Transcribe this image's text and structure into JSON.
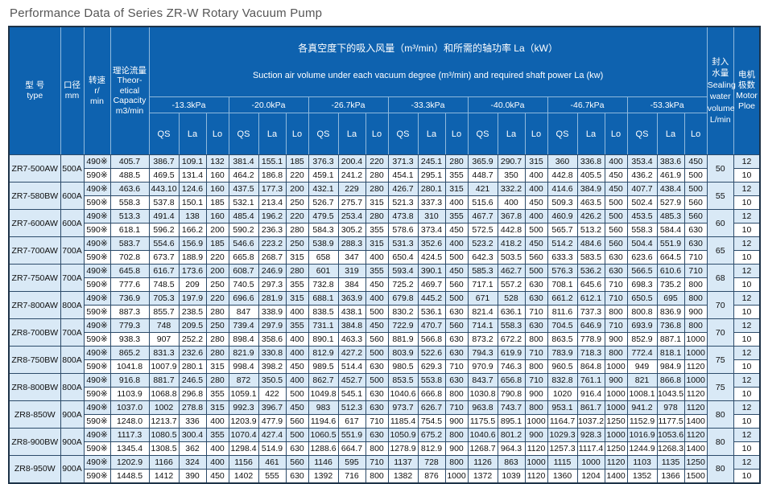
{
  "title": "Performance Data of Series ZR-W Rotary Vacuum Pump",
  "table": {
    "banner": {
      "line1": "各真空度下的吸入风量（m³/min）和所需的轴功率 La（kW）",
      "line2": "Suction air volume under each vacuum degree (m³/min) and required shaft power La (kw)"
    },
    "columns": {
      "type": [
        "型 号",
        "type"
      ],
      "caliber": [
        "口径",
        "mm"
      ],
      "speed": [
        "转速",
        "r/",
        "min"
      ],
      "capacity": [
        "理论流量",
        "Theor-",
        "etical",
        "Capacity",
        "m3/min"
      ],
      "sealing": [
        "封入",
        "水量",
        "Sealing",
        "water",
        "volume",
        "L/min"
      ],
      "pole": [
        "电机",
        "极数",
        "Motor",
        "Ploe"
      ]
    },
    "pressures": [
      "-13.3kPa",
      "-20.0kPa",
      "-26.7kPa",
      "-33.3kPa",
      "-40.0kPa",
      "-46.7kPa",
      "-53.3kPa"
    ],
    "sub_cols": [
      "QS",
      "La",
      "Lo"
    ],
    "rows": [
      {
        "type": "ZR7-500AW",
        "caliber": "500A",
        "sealing": "50",
        "sub": [
          {
            "speed": "490※",
            "capacity": "405.7",
            "pole": "12",
            "values": [
              "386.7",
              "109.1",
              "132",
              "381.4",
              "155.1",
              "185",
              "376.3",
              "200.4",
              "220",
              "371.3",
              "245.1",
              "280",
              "365.9",
              "290.7",
              "315",
              "360",
              "336.8",
              "400",
              "353.4",
              "383.6",
              "450"
            ]
          },
          {
            "speed": "590※",
            "capacity": "488.5",
            "pole": "10",
            "values": [
              "469.5",
              "131.4",
              "160",
              "464.2",
              "186.8",
              "220",
              "459.1",
              "241.2",
              "280",
              "454.1",
              "295.1",
              "355",
              "448.7",
              "350",
              "400",
              "442.8",
              "405.5",
              "450",
              "436.2",
              "461.9",
              "500"
            ]
          }
        ]
      },
      {
        "type": "ZR7-580BW",
        "caliber": "600A",
        "sealing": "55",
        "sub": [
          {
            "speed": "490※",
            "capacity": "463.6",
            "pole": "12",
            "values": [
              "443.10",
              "124.6",
              "160",
              "437.5",
              "177.3",
              "200",
              "432.1",
              "229",
              "280",
              "426.7",
              "280.1",
              "315",
              "421",
              "332.2",
              "400",
              "414.6",
              "384.9",
              "450",
              "407.7",
              "438.4",
              "500"
            ]
          },
          {
            "speed": "590※",
            "capacity": "558.3",
            "pole": "10",
            "values": [
              "537.8",
              "150.1",
              "185",
              "532.1",
              "213.4",
              "250",
              "526.7",
              "275.7",
              "315",
              "521.3",
              "337.3",
              "400",
              "515.6",
              "400",
              "450",
              "509.3",
              "463.5",
              "500",
              "502.4",
              "527.9",
              "560"
            ]
          }
        ]
      },
      {
        "type": "ZR7-600AW",
        "caliber": "600A",
        "sealing": "60",
        "sub": [
          {
            "speed": "490※",
            "capacity": "513.3",
            "pole": "12",
            "values": [
              "491.4",
              "138",
              "160",
              "485.4",
              "196.2",
              "220",
              "479.5",
              "253.4",
              "280",
              "473.8",
              "310",
              "355",
              "467.7",
              "367.8",
              "400",
              "460.9",
              "426.2",
              "500",
              "453.5",
              "485.3",
              "560"
            ]
          },
          {
            "speed": "590※",
            "capacity": "618.1",
            "pole": "10",
            "values": [
              "596.2",
              "166.2",
              "200",
              "590.2",
              "236.3",
              "280",
              "584.3",
              "305.2",
              "355",
              "578.6",
              "373.4",
              "450",
              "572.5",
              "442.8",
              "500",
              "565.7",
              "513.2",
              "560",
              "558.3",
              "584.4",
              "630"
            ]
          }
        ]
      },
      {
        "type": "ZR7-700AW",
        "caliber": "700A",
        "sealing": "65",
        "sub": [
          {
            "speed": "490※",
            "capacity": "583.7",
            "pole": "12",
            "values": [
              "554.6",
              "156.9",
              "185",
              "546.6",
              "223.2",
              "250",
              "538.9",
              "288.3",
              "315",
              "531.3",
              "352.6",
              "400",
              "523.2",
              "418.2",
              "450",
              "514.2",
              "484.6",
              "560",
              "504.4",
              "551.9",
              "630"
            ]
          },
          {
            "speed": "590※",
            "capacity": "702.8",
            "pole": "10",
            "values": [
              "673.7",
              "188.9",
              "220",
              "665.8",
              "268.7",
              "315",
              "658",
              "347",
              "400",
              "650.4",
              "424.5",
              "500",
              "642.3",
              "503.5",
              "560",
              "633.3",
              "583.5",
              "630",
              "623.6",
              "664.5",
              "710"
            ]
          }
        ]
      },
      {
        "type": "ZR7-750AW",
        "caliber": "700A",
        "sealing": "68",
        "sub": [
          {
            "speed": "490※",
            "capacity": "645.8",
            "pole": "12",
            "values": [
              "616.7",
              "173.6",
              "200",
              "608.7",
              "246.9",
              "280",
              "601",
              "319",
              "355",
              "593.4",
              "390.1",
              "450",
              "585.3",
              "462.7",
              "500",
              "576.3",
              "536.2",
              "630",
              "566.5",
              "610.6",
              "710"
            ]
          },
          {
            "speed": "590※",
            "capacity": "777.6",
            "pole": "10",
            "values": [
              "748.5",
              "209",
              "250",
              "740.5",
              "297.3",
              "355",
              "732.8",
              "384",
              "450",
              "725.2",
              "469.7",
              "560",
              "717.1",
              "557.2",
              "630",
              "708.1",
              "645.6",
              "710",
              "698.3",
              "735.2",
              "800"
            ]
          }
        ]
      },
      {
        "type": "ZR7-800AW",
        "caliber": "800A",
        "sealing": "70",
        "sub": [
          {
            "speed": "490※",
            "capacity": "736.9",
            "pole": "12",
            "values": [
              "705.3",
              "197.9",
              "220",
              "696.6",
              "281.9",
              "315",
              "688.1",
              "363.9",
              "400",
              "679.8",
              "445.2",
              "500",
              "671",
              "528",
              "630",
              "661.2",
              "612.1",
              "710",
              "650.5",
              "695",
              "800"
            ]
          },
          {
            "speed": "590※",
            "capacity": "887.3",
            "pole": "10",
            "values": [
              "855.7",
              "238.5",
              "280",
              "847",
              "338.9",
              "400",
              "838.5",
              "438.1",
              "500",
              "830.2",
              "536.1",
              "630",
              "821.4",
              "636.1",
              "710",
              "811.6",
              "737.3",
              "800",
              "800.8",
              "836.9",
              "900"
            ]
          }
        ]
      },
      {
        "type": "ZR8-700BW",
        "caliber": "700A",
        "sealing": "70",
        "sub": [
          {
            "speed": "490※",
            "capacity": "779.3",
            "pole": "12",
            "values": [
              "748",
              "209.5",
              "250",
              "739.4",
              "297.9",
              "355",
              "731.1",
              "384.8",
              "450",
              "722.9",
              "470.7",
              "560",
              "714.1",
              "558.3",
              "630",
              "704.5",
              "646.9",
              "710",
              "693.9",
              "736.8",
              "800"
            ]
          },
          {
            "speed": "590※",
            "capacity": "938.3",
            "pole": "10",
            "values": [
              "907",
              "252.2",
              "280",
              "898.4",
              "358.6",
              "400",
              "890.1",
              "463.3",
              "560",
              "881.9",
              "566.8",
              "630",
              "873.2",
              "672.2",
              "800",
              "863.5",
              "778.9",
              "900",
              "852.9",
              "887.1",
              "1000"
            ]
          }
        ]
      },
      {
        "type": "ZR8-750BW",
        "caliber": "800A",
        "sealing": "75",
        "sub": [
          {
            "speed": "490※",
            "capacity": "865.2",
            "pole": "12",
            "values": [
              "831.3",
              "232.6",
              "280",
              "821.9",
              "330.8",
              "400",
              "812.9",
              "427.2",
              "500",
              "803.9",
              "522.6",
              "630",
              "794.3",
              "619.9",
              "710",
              "783.9",
              "718.3",
              "800",
              "772.4",
              "818.1",
              "1000"
            ]
          },
          {
            "speed": "590※",
            "capacity": "1041.8",
            "pole": "10",
            "values": [
              "1007.9",
              "280.1",
              "315",
              "998.4",
              "398.2",
              "450",
              "989.5",
              "514.4",
              "630",
              "980.5",
              "629.3",
              "710",
              "970.9",
              "746.3",
              "800",
              "960.5",
              "864.8",
              "1000",
              "949",
              "984.9",
              "1120"
            ]
          }
        ]
      },
      {
        "type": "ZR8-800BW",
        "caliber": "800A",
        "sealing": "75",
        "sub": [
          {
            "speed": "490※",
            "capacity": "916.8",
            "pole": "12",
            "values": [
              "881.7",
              "246.5",
              "280",
              "872",
              "350.5",
              "400",
              "862.7",
              "452.7",
              "500",
              "853.5",
              "553.8",
              "630",
              "843.7",
              "656.8",
              "710",
              "832.8",
              "761.1",
              "900",
              "821",
              "866.8",
              "1000"
            ]
          },
          {
            "speed": "590※",
            "capacity": "1103.9",
            "pole": "10",
            "values": [
              "1068.8",
              "296.8",
              "355",
              "1059.1",
              "422",
              "500",
              "1049.8",
              "545.1",
              "630",
              "1040.6",
              "666.8",
              "800",
              "1030.8",
              "790.8",
              "900",
              "1020",
              "916.4",
              "1000",
              "1008.1",
              "1043.5",
              "1120"
            ]
          }
        ]
      },
      {
        "type": "ZR8-850W",
        "caliber": "900A",
        "sealing": "80",
        "sub": [
          {
            "speed": "490※",
            "capacity": "1037.0",
            "pole": "12",
            "values": [
              "1002",
              "278.8",
              "315",
              "992.3",
              "396.7",
              "450",
              "983",
              "512.3",
              "630",
              "973.7",
              "626.7",
              "710",
              "963.8",
              "743.7",
              "800",
              "953.1",
              "861.7",
              "1000",
              "941.2",
              "978",
              "1120"
            ]
          },
          {
            "speed": "590※",
            "capacity": "1248.0",
            "pole": "10",
            "values": [
              "1213.7",
              "336",
              "400",
              "1203.9",
              "477.9",
              "560",
              "1194.6",
              "617",
              "710",
              "1185.4",
              "754.5",
              "900",
              "1175.5",
              "895.1",
              "1000",
              "1164.7",
              "1037.2",
              "1250",
              "1152.9",
              "1177.5",
              "1400"
            ]
          }
        ]
      },
      {
        "type": "ZR8-900BW",
        "caliber": "900A",
        "sealing": "80",
        "sub": [
          {
            "speed": "490※",
            "capacity": "1117.3",
            "pole": "12",
            "values": [
              "1080.5",
              "300.4",
              "355",
              "1070.4",
              "427.4",
              "500",
              "1060.5",
              "551.9",
              "630",
              "1050.9",
              "675.2",
              "800",
              "1040.6",
              "801.2",
              "900",
              "1029.3",
              "928.3",
              "1000",
              "1016.9",
              "1053.6",
              "1120"
            ]
          },
          {
            "speed": "590※",
            "capacity": "1345.4",
            "pole": "10",
            "values": [
              "1308.5",
              "362",
              "400",
              "1298.4",
              "514.9",
              "630",
              "1288.6",
              "664.7",
              "800",
              "1278.9",
              "812.9",
              "900",
              "1268.7",
              "964.3",
              "1120",
              "1257.3",
              "1117.4",
              "1250",
              "1244.9",
              "1268.3",
              "1400"
            ]
          }
        ]
      },
      {
        "type": "ZR8-950W",
        "caliber": "900A",
        "sealing": "80",
        "sub": [
          {
            "speed": "490※",
            "capacity": "1202.9",
            "pole": "12",
            "values": [
              "1166",
              "324",
              "400",
              "1156",
              "461",
              "560",
              "1146",
              "595",
              "710",
              "1137",
              "728",
              "800",
              "1126",
              "863",
              "1000",
              "1115",
              "1000",
              "1120",
              "1103",
              "1135",
              "1250"
            ]
          },
          {
            "speed": "590※",
            "capacity": "1448.5",
            "pole": "10",
            "values": [
              "1412",
              "390",
              "450",
              "1402",
              "555",
              "630",
              "1392",
              "716",
              "800",
              "1382",
              "876",
              "1000",
              "1372",
              "1039",
              "1120",
              "1360",
              "1204",
              "1400",
              "1352",
              "1366",
              "1500"
            ]
          }
        ]
      }
    ]
  }
}
